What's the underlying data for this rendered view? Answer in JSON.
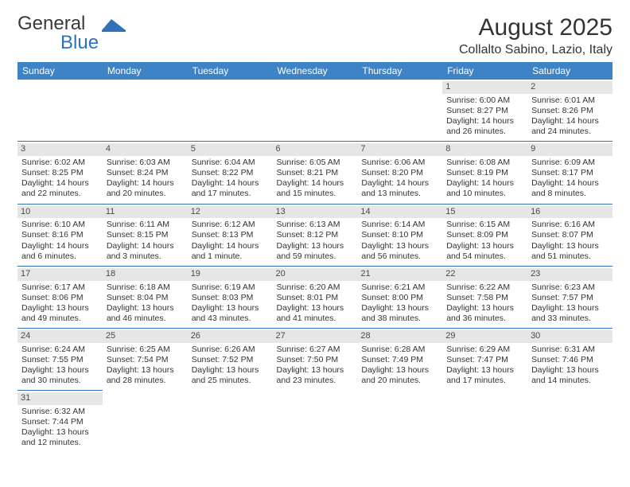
{
  "logo": {
    "word1": "General",
    "word2": "Blue"
  },
  "title": "August 2025",
  "location": "Collalto Sabino, Lazio, Italy",
  "colors": {
    "header_bg": "#3e83c6",
    "header_text": "#ffffff",
    "daynum_bg": "#e6e6e6",
    "row_border": "#2f73b6",
    "text": "#333333",
    "logo_blue": "#2f73b6"
  },
  "fonts": {
    "month_size": 30,
    "location_size": 16,
    "weekday_size": 12,
    "cell_size": 10.5
  },
  "weekdays": [
    "Sunday",
    "Monday",
    "Tuesday",
    "Wednesday",
    "Thursday",
    "Friday",
    "Saturday"
  ],
  "weeks": [
    [
      {
        "day": "",
        "sunrise": "",
        "sunset": "",
        "daylight": ""
      },
      {
        "day": "",
        "sunrise": "",
        "sunset": "",
        "daylight": ""
      },
      {
        "day": "",
        "sunrise": "",
        "sunset": "",
        "daylight": ""
      },
      {
        "day": "",
        "sunrise": "",
        "sunset": "",
        "daylight": ""
      },
      {
        "day": "",
        "sunrise": "",
        "sunset": "",
        "daylight": ""
      },
      {
        "day": "1",
        "sunrise": "Sunrise: 6:00 AM",
        "sunset": "Sunset: 8:27 PM",
        "daylight": "Daylight: 14 hours and 26 minutes."
      },
      {
        "day": "2",
        "sunrise": "Sunrise: 6:01 AM",
        "sunset": "Sunset: 8:26 PM",
        "daylight": "Daylight: 14 hours and 24 minutes."
      }
    ],
    [
      {
        "day": "3",
        "sunrise": "Sunrise: 6:02 AM",
        "sunset": "Sunset: 8:25 PM",
        "daylight": "Daylight: 14 hours and 22 minutes."
      },
      {
        "day": "4",
        "sunrise": "Sunrise: 6:03 AM",
        "sunset": "Sunset: 8:24 PM",
        "daylight": "Daylight: 14 hours and 20 minutes."
      },
      {
        "day": "5",
        "sunrise": "Sunrise: 6:04 AM",
        "sunset": "Sunset: 8:22 PM",
        "daylight": "Daylight: 14 hours and 17 minutes."
      },
      {
        "day": "6",
        "sunrise": "Sunrise: 6:05 AM",
        "sunset": "Sunset: 8:21 PM",
        "daylight": "Daylight: 14 hours and 15 minutes."
      },
      {
        "day": "7",
        "sunrise": "Sunrise: 6:06 AM",
        "sunset": "Sunset: 8:20 PM",
        "daylight": "Daylight: 14 hours and 13 minutes."
      },
      {
        "day": "8",
        "sunrise": "Sunrise: 6:08 AM",
        "sunset": "Sunset: 8:19 PM",
        "daylight": "Daylight: 14 hours and 10 minutes."
      },
      {
        "day": "9",
        "sunrise": "Sunrise: 6:09 AM",
        "sunset": "Sunset: 8:17 PM",
        "daylight": "Daylight: 14 hours and 8 minutes."
      }
    ],
    [
      {
        "day": "10",
        "sunrise": "Sunrise: 6:10 AM",
        "sunset": "Sunset: 8:16 PM",
        "daylight": "Daylight: 14 hours and 6 minutes."
      },
      {
        "day": "11",
        "sunrise": "Sunrise: 6:11 AM",
        "sunset": "Sunset: 8:15 PM",
        "daylight": "Daylight: 14 hours and 3 minutes."
      },
      {
        "day": "12",
        "sunrise": "Sunrise: 6:12 AM",
        "sunset": "Sunset: 8:13 PM",
        "daylight": "Daylight: 14 hours and 1 minute."
      },
      {
        "day": "13",
        "sunrise": "Sunrise: 6:13 AM",
        "sunset": "Sunset: 8:12 PM",
        "daylight": "Daylight: 13 hours and 59 minutes."
      },
      {
        "day": "14",
        "sunrise": "Sunrise: 6:14 AM",
        "sunset": "Sunset: 8:10 PM",
        "daylight": "Daylight: 13 hours and 56 minutes."
      },
      {
        "day": "15",
        "sunrise": "Sunrise: 6:15 AM",
        "sunset": "Sunset: 8:09 PM",
        "daylight": "Daylight: 13 hours and 54 minutes."
      },
      {
        "day": "16",
        "sunrise": "Sunrise: 6:16 AM",
        "sunset": "Sunset: 8:07 PM",
        "daylight": "Daylight: 13 hours and 51 minutes."
      }
    ],
    [
      {
        "day": "17",
        "sunrise": "Sunrise: 6:17 AM",
        "sunset": "Sunset: 8:06 PM",
        "daylight": "Daylight: 13 hours and 49 minutes."
      },
      {
        "day": "18",
        "sunrise": "Sunrise: 6:18 AM",
        "sunset": "Sunset: 8:04 PM",
        "daylight": "Daylight: 13 hours and 46 minutes."
      },
      {
        "day": "19",
        "sunrise": "Sunrise: 6:19 AM",
        "sunset": "Sunset: 8:03 PM",
        "daylight": "Daylight: 13 hours and 43 minutes."
      },
      {
        "day": "20",
        "sunrise": "Sunrise: 6:20 AM",
        "sunset": "Sunset: 8:01 PM",
        "daylight": "Daylight: 13 hours and 41 minutes."
      },
      {
        "day": "21",
        "sunrise": "Sunrise: 6:21 AM",
        "sunset": "Sunset: 8:00 PM",
        "daylight": "Daylight: 13 hours and 38 minutes."
      },
      {
        "day": "22",
        "sunrise": "Sunrise: 6:22 AM",
        "sunset": "Sunset: 7:58 PM",
        "daylight": "Daylight: 13 hours and 36 minutes."
      },
      {
        "day": "23",
        "sunrise": "Sunrise: 6:23 AM",
        "sunset": "Sunset: 7:57 PM",
        "daylight": "Daylight: 13 hours and 33 minutes."
      }
    ],
    [
      {
        "day": "24",
        "sunrise": "Sunrise: 6:24 AM",
        "sunset": "Sunset: 7:55 PM",
        "daylight": "Daylight: 13 hours and 30 minutes."
      },
      {
        "day": "25",
        "sunrise": "Sunrise: 6:25 AM",
        "sunset": "Sunset: 7:54 PM",
        "daylight": "Daylight: 13 hours and 28 minutes."
      },
      {
        "day": "26",
        "sunrise": "Sunrise: 6:26 AM",
        "sunset": "Sunset: 7:52 PM",
        "daylight": "Daylight: 13 hours and 25 minutes."
      },
      {
        "day": "27",
        "sunrise": "Sunrise: 6:27 AM",
        "sunset": "Sunset: 7:50 PM",
        "daylight": "Daylight: 13 hours and 23 minutes."
      },
      {
        "day": "28",
        "sunrise": "Sunrise: 6:28 AM",
        "sunset": "Sunset: 7:49 PM",
        "daylight": "Daylight: 13 hours and 20 minutes."
      },
      {
        "day": "29",
        "sunrise": "Sunrise: 6:29 AM",
        "sunset": "Sunset: 7:47 PM",
        "daylight": "Daylight: 13 hours and 17 minutes."
      },
      {
        "day": "30",
        "sunrise": "Sunrise: 6:31 AM",
        "sunset": "Sunset: 7:46 PM",
        "daylight": "Daylight: 13 hours and 14 minutes."
      }
    ],
    [
      {
        "day": "31",
        "sunrise": "Sunrise: 6:32 AM",
        "sunset": "Sunset: 7:44 PM",
        "daylight": "Daylight: 13 hours and 12 minutes."
      },
      {
        "day": "",
        "sunrise": "",
        "sunset": "",
        "daylight": ""
      },
      {
        "day": "",
        "sunrise": "",
        "sunset": "",
        "daylight": ""
      },
      {
        "day": "",
        "sunrise": "",
        "sunset": "",
        "daylight": ""
      },
      {
        "day": "",
        "sunrise": "",
        "sunset": "",
        "daylight": ""
      },
      {
        "day": "",
        "sunrise": "",
        "sunset": "",
        "daylight": ""
      },
      {
        "day": "",
        "sunrise": "",
        "sunset": "",
        "daylight": ""
      }
    ]
  ]
}
